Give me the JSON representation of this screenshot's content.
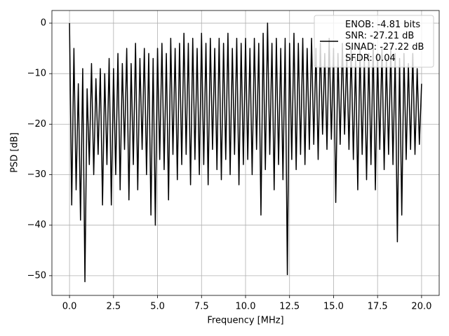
{
  "chart_data": {
    "type": "line",
    "x_label": "Frequency [MHz]",
    "y_label": "PSD [dB]",
    "xlim": [
      -1,
      21
    ],
    "ylim": [
      -53.9,
      2.5
    ],
    "xticks": [
      {
        "value": 0,
        "label": "0.0"
      },
      2.5,
      {
        "value": 5,
        "label": "5.0"
      },
      7.5,
      {
        "value": 10,
        "label": "10.0"
      },
      12.5,
      {
        "value": 15,
        "label": "15.0"
      },
      17.5,
      {
        "value": 20,
        "label": "20.0"
      }
    ],
    "yticks": [
      {
        "value": 0,
        "label": "0"
      },
      {
        "value": -10,
        "label": "−10"
      },
      {
        "value": -20,
        "label": "−20"
      },
      {
        "value": -30,
        "label": "−30"
      },
      {
        "value": -40,
        "label": "−40"
      },
      {
        "value": -50,
        "label": "−50"
      }
    ],
    "grid": true,
    "legend": "upper right",
    "x": [
      0,
      0.125,
      0.25,
      0.375,
      0.5,
      0.625,
      0.75,
      0.875,
      1,
      1.125,
      1.25,
      1.375,
      1.5,
      1.625,
      1.75,
      1.875,
      2,
      2.125,
      2.25,
      2.375,
      2.5,
      2.625,
      2.75,
      2.875,
      3,
      3.125,
      3.25,
      3.375,
      3.5,
      3.625,
      3.75,
      3.875,
      4,
      4.125,
      4.25,
      4.375,
      4.5,
      4.625,
      4.75,
      4.875,
      5,
      5.125,
      5.25,
      5.375,
      5.5,
      5.625,
      5.75,
      5.875,
      6,
      6.125,
      6.25,
      6.375,
      6.5,
      6.625,
      6.75,
      6.875,
      7,
      7.125,
      7.25,
      7.375,
      7.5,
      7.625,
      7.75,
      7.875,
      8,
      8.125,
      8.25,
      8.375,
      8.5,
      8.625,
      8.75,
      8.875,
      9,
      9.125,
      9.25,
      9.375,
      9.5,
      9.625,
      9.75,
      9.875,
      10,
      10.125,
      10.25,
      10.375,
      10.5,
      10.625,
      10.75,
      10.875,
      11,
      11.125,
      11.25,
      11.375,
      11.5,
      11.625,
      11.75,
      11.875,
      12,
      12.125,
      12.25,
      12.375,
      12.5,
      12.625,
      12.75,
      12.875,
      13,
      13.125,
      13.25,
      13.375,
      13.5,
      13.625,
      13.75,
      13.875,
      14,
      14.125,
      14.25,
      14.375,
      14.5,
      14.625,
      14.75,
      14.875,
      15,
      15.125,
      15.25,
      15.375,
      15.5,
      15.625,
      15.75,
      15.875,
      16,
      16.125,
      16.25,
      16.375,
      16.5,
      16.625,
      16.75,
      16.875,
      17,
      17.125,
      17.25,
      17.375,
      17.5,
      17.625,
      17.75,
      17.875,
      18,
      18.125,
      18.25,
      18.375,
      18.5,
      18.625,
      18.75,
      18.875,
      19,
      19.125,
      19.25,
      19.375,
      19.5,
      19.625,
      19.75,
      19.875,
      20
    ],
    "series": [
      {
        "name": "ENOB: -4.81 bits\nSNR: -27.21 dB\nSINAD: -27.22 dB\nSFDR: 0.04",
        "color": "#000000",
        "values": [
          0,
          -36,
          -5,
          -33,
          -12,
          -39,
          -9,
          -51.2,
          -13,
          -28,
          -8,
          -30,
          -11,
          -26,
          -9,
          -36,
          -10,
          -28,
          -7,
          -36,
          -9,
          -30,
          -6,
          -33,
          -8,
          -25,
          -5,
          -35,
          -8,
          -28,
          -4,
          -33,
          -7,
          -25,
          -5,
          -30,
          -6,
          -38,
          -7,
          -40,
          -5,
          -27,
          -4,
          -29,
          -6,
          -35,
          -3,
          -26,
          -5,
          -31,
          -4,
          -28,
          -2,
          -26,
          -4,
          -32,
          -3,
          -27,
          -5,
          -30,
          -2,
          -28,
          -4,
          -32,
          -3,
          -25,
          -5,
          -29,
          -3,
          -31,
          -4,
          -27,
          -2,
          -30,
          -5,
          -26,
          -3,
          -32,
          -4,
          -28,
          -3,
          -27,
          -5,
          -30,
          -3,
          -25,
          -4,
          -38,
          -2,
          -29,
          0,
          -26,
          -4,
          -33,
          -3,
          -28,
          -5,
          -31,
          -3,
          -49.8,
          -4,
          -27,
          -2,
          -29,
          -4,
          -26,
          -3,
          -28,
          -5,
          -25,
          -3,
          -24,
          -5,
          -27,
          -4,
          -22,
          -6,
          -25,
          -3,
          -23,
          -5,
          -35.5,
          -6,
          -24,
          -4,
          -22,
          -6,
          -25,
          -5,
          -27,
          -7,
          -33,
          -5,
          -26,
          -7,
          -31,
          -6,
          -28,
          -4,
          -33,
          -6,
          -25,
          -5,
          -29,
          -7,
          -26,
          -5,
          -28,
          -6,
          -43.3,
          -7,
          -38,
          -6,
          -27,
          -8,
          -25,
          -6,
          -26,
          -9,
          -24,
          -12
        ]
      }
    ]
  }
}
